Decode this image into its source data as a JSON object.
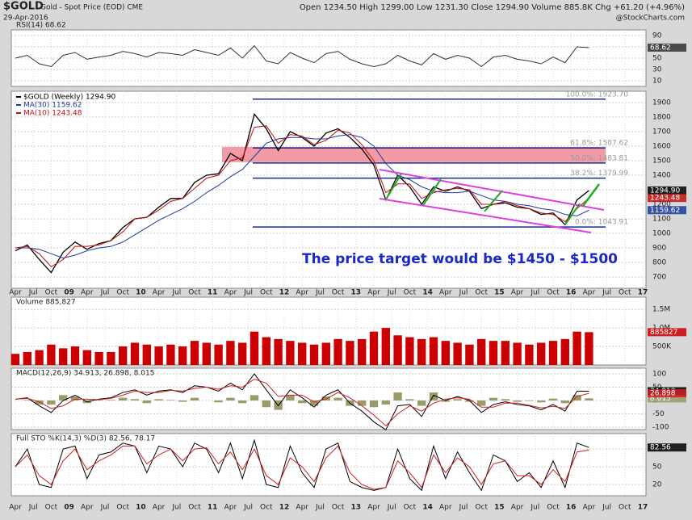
{
  "header": {
    "symbol": "$GOLD",
    "name": "Gold - Spot Price (EOD) CME",
    "date": "29-Apr-2016",
    "quote": "Open 1234.50 High 1299.00 Low 1231.30 Close 1294.90 Volume 885.8K Chg +61.20 (+4.96%)",
    "watermark": "@StockCharts.com"
  },
  "chart_data": [
    {
      "type": "line",
      "title": "RSI(14) 68.62",
      "ylim": [
        0,
        100
      ],
      "yticks": [
        90,
        70,
        50,
        30,
        10
      ],
      "grid": true,
      "series": [
        {
          "color": "#333333",
          "tag": "68.62",
          "values": [
            50,
            55,
            40,
            35,
            55,
            60,
            48,
            52,
            55,
            62,
            58,
            52,
            60,
            58,
            55,
            65,
            60,
            55,
            68,
            50,
            72,
            45,
            40,
            60,
            50,
            42,
            58,
            62,
            48,
            40,
            35,
            40,
            55,
            45,
            38,
            58,
            48,
            55,
            50,
            35,
            52,
            55,
            48,
            45,
            40,
            52,
            42,
            70,
            68.62
          ]
        }
      ]
    },
    {
      "type": "line",
      "ylim": [
        622,
        1978
      ],
      "yticks": [
        700,
        800,
        900,
        1000,
        1100,
        1200,
        1300,
        1400,
        1500,
        1600,
        1700,
        1800,
        1900
      ],
      "grid": true,
      "xticks": [
        "Apr",
        "Jul",
        "Oct",
        "09",
        "Apr",
        "Jul",
        "Oct",
        "10",
        "Apr",
        "Jul",
        "Oct",
        "11",
        "Apr",
        "Jul",
        "Oct",
        "12",
        "Apr",
        "Jul",
        "Oct",
        "13",
        "Apr",
        "Jul",
        "Oct",
        "14",
        "Apr",
        "Jul",
        "Oct",
        "15",
        "Apr",
        "Jul",
        "Oct",
        "16",
        "Apr",
        "Jul",
        "Oct",
        "17"
      ],
      "band": [
        1490,
        1595
      ],
      "levels": [
        {
          "value": 1923.7,
          "label": "100.0%: 1923.70"
        },
        {
          "value": 1587.62,
          "label": "61.8%: 1587.62"
        },
        {
          "value": 1483.81,
          "label": "50.0%: 1483.81"
        },
        {
          "value": 1379.99,
          "label": "38.2%: 1379.99"
        },
        {
          "value": 1043.91,
          "label": "0.0%: 1043.91"
        }
      ],
      "annotation": "The price target would be $1450 - $1500",
      "series": [
        {
          "name": "$GOLD (Weekly) 1294.90",
          "color": "#000000",
          "tag": "1294.90",
          "values": [
            880,
            920,
            820,
            730,
            870,
            940,
            890,
            930,
            950,
            1040,
            1100,
            1110,
            1180,
            1240,
            1240,
            1350,
            1400,
            1410,
            1550,
            1500,
            1820,
            1720,
            1570,
            1700,
            1660,
            1600,
            1690,
            1720,
            1660,
            1580,
            1470,
            1230,
            1400,
            1320,
            1200,
            1320,
            1290,
            1320,
            1290,
            1170,
            1200,
            1210,
            1180,
            1170,
            1130,
            1140,
            1060,
            1230,
            1294.9
          ]
        },
        {
          "name": "MA(30) 1159.62",
          "color": "#1a3aa0",
          "tag": "1159.62",
          "values": [
            900,
            900,
            890,
            860,
            830,
            850,
            880,
            900,
            910,
            940,
            990,
            1040,
            1090,
            1130,
            1170,
            1220,
            1280,
            1330,
            1390,
            1440,
            1530,
            1620,
            1650,
            1660,
            1660,
            1650,
            1650,
            1670,
            1680,
            1660,
            1600,
            1480,
            1400,
            1370,
            1320,
            1290,
            1280,
            1280,
            1290,
            1260,
            1230,
            1220,
            1200,
            1190,
            1170,
            1160,
            1130,
            1120,
            1159.62
          ]
        },
        {
          "name": "MA(10) 1243.48",
          "color": "#c01010",
          "tag": "1243.48",
          "values": [
            900,
            910,
            860,
            770,
            820,
            910,
            910,
            920,
            950,
            1010,
            1100,
            1110,
            1160,
            1220,
            1240,
            1310,
            1380,
            1400,
            1500,
            1520,
            1730,
            1740,
            1620,
            1680,
            1670,
            1610,
            1640,
            1710,
            1690,
            1610,
            1500,
            1280,
            1340,
            1340,
            1240,
            1280,
            1300,
            1310,
            1300,
            1200,
            1200,
            1220,
            1190,
            1170,
            1140,
            1130,
            1080,
            1170,
            1243.48
          ]
        }
      ]
    },
    {
      "type": "bar",
      "title": "Volume 885,827",
      "ylim": [
        0,
        1830000
      ],
      "yticks": [
        {
          "value": 1500000,
          "label": "1.5M"
        },
        {
          "value": 1000000,
          "label": "1.0M"
        },
        {
          "value": 500000,
          "label": "500K"
        }
      ],
      "grid": true,
      "series": [
        {
          "color": "#cc0000",
          "tag": "885827",
          "values": [
            300000,
            350000,
            400000,
            550000,
            450000,
            500000,
            400000,
            350000,
            350000,
            500000,
            600000,
            550000,
            500000,
            550000,
            500000,
            650000,
            600000,
            550000,
            650000,
            600000,
            900000,
            750000,
            700000,
            650000,
            600000,
            550000,
            600000,
            700000,
            650000,
            700000,
            900000,
            1000000,
            800000,
            750000,
            700000,
            750000,
            650000,
            600000,
            550000,
            700000,
            650000,
            650000,
            600000,
            550000,
            600000,
            650000,
            700000,
            900000,
            885827
          ]
        }
      ]
    },
    {
      "type": "line",
      "title": "MACD(12,26,9) 34.913, 26.898, 8.015",
      "ylim": [
        -109,
        121
      ],
      "yticks": [
        100,
        50,
        0,
        -50,
        -100
      ],
      "grid": true,
      "series": [
        {
          "type": "bar",
          "color": "#9a9a6a",
          "tag": "8.015",
          "values": [
            0,
            2,
            -15,
            -15,
            20,
            15,
            -10,
            2,
            2,
            10,
            5,
            -10,
            5,
            2,
            -5,
            10,
            0,
            -7,
            10,
            -10,
            20,
            -25,
            -35,
            20,
            -10,
            -20,
            15,
            10,
            -20,
            -20,
            -25,
            -15,
            30,
            5,
            -20,
            30,
            -5,
            5,
            -5,
            -20,
            10,
            5,
            -5,
            -2,
            -7,
            7,
            -10,
            20,
            8.015
          ]
        },
        {
          "color": "#000000",
          "tag": "34.913",
          "values": [
            5,
            10,
            -20,
            -45,
            0,
            20,
            -5,
            5,
            10,
            30,
            40,
            20,
            35,
            40,
            30,
            55,
            50,
            35,
            65,
            40,
            100,
            40,
            -20,
            40,
            10,
            -25,
            20,
            40,
            -10,
            -40,
            -80,
            -110,
            -20,
            -15,
            -60,
            20,
            0,
            15,
            0,
            -45,
            -15,
            -5,
            -15,
            -20,
            -35,
            -15,
            -40,
            35,
            34.913
          ]
        },
        {
          "color": "#d02020",
          "tag": "26.898",
          "values": [
            5,
            8,
            -5,
            -30,
            -20,
            5,
            5,
            3,
            8,
            20,
            35,
            30,
            30,
            38,
            35,
            45,
            50,
            42,
            55,
            50,
            80,
            65,
            15,
            20,
            20,
            -5,
            5,
            30,
            10,
            -20,
            -55,
            -95,
            -50,
            -20,
            -40,
            -10,
            5,
            10,
            5,
            -25,
            -25,
            -10,
            -10,
            -18,
            -28,
            -22,
            -30,
            15,
            26.898
          ]
        }
      ]
    },
    {
      "type": "line",
      "title": "Full STO %K(14,3) %D(3) 82.56, 78.17",
      "ylim": [
        1,
        106
      ],
      "yticks": [
        80,
        50,
        20
      ],
      "grid": true,
      "series": [
        {
          "color": "#000000",
          "tag": "82.56",
          "values": [
            50,
            80,
            20,
            15,
            80,
            85,
            30,
            70,
            75,
            90,
            85,
            40,
            85,
            80,
            50,
            90,
            80,
            40,
            90,
            30,
            95,
            20,
            15,
            85,
            40,
            15,
            80,
            90,
            25,
            15,
            10,
            15,
            80,
            30,
            10,
            85,
            30,
            75,
            40,
            10,
            70,
            60,
            25,
            40,
            15,
            60,
            15,
            90,
            82.56
          ]
        },
        {
          "color": "#d02020",
          "values": [
            50,
            70,
            35,
            20,
            60,
            80,
            45,
            60,
            70,
            85,
            85,
            55,
            70,
            80,
            60,
            80,
            82,
            55,
            75,
            45,
            80,
            35,
            20,
            65,
            50,
            25,
            65,
            85,
            40,
            20,
            12,
            15,
            60,
            40,
            15,
            70,
            40,
            65,
            50,
            20,
            55,
            60,
            35,
            35,
            20,
            45,
            25,
            75,
            78.17
          ]
        }
      ]
    }
  ]
}
